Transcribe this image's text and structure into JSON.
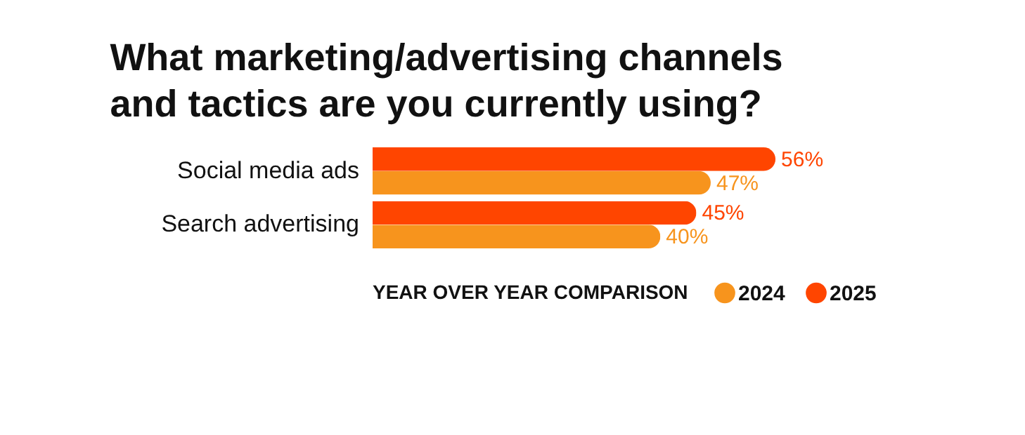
{
  "chart_data": {
    "type": "bar",
    "orientation": "horizontal",
    "title": "What marketing/advertising channels and tactics are you currently using?",
    "categories": [
      "Social media ads",
      "Search advertising"
    ],
    "series": [
      {
        "name": "2024",
        "color": "#f7941d",
        "values": [
          47,
          40
        ],
        "value_labels": [
          "47%",
          "40%"
        ]
      },
      {
        "name": "2025",
        "color": "#ff4500",
        "values": [
          56,
          45
        ],
        "value_labels": [
          "56%",
          "45%"
        ]
      }
    ],
    "legend_title": "YEAR OVER YEAR COMPARISON",
    "legend": "bottom"
  }
}
